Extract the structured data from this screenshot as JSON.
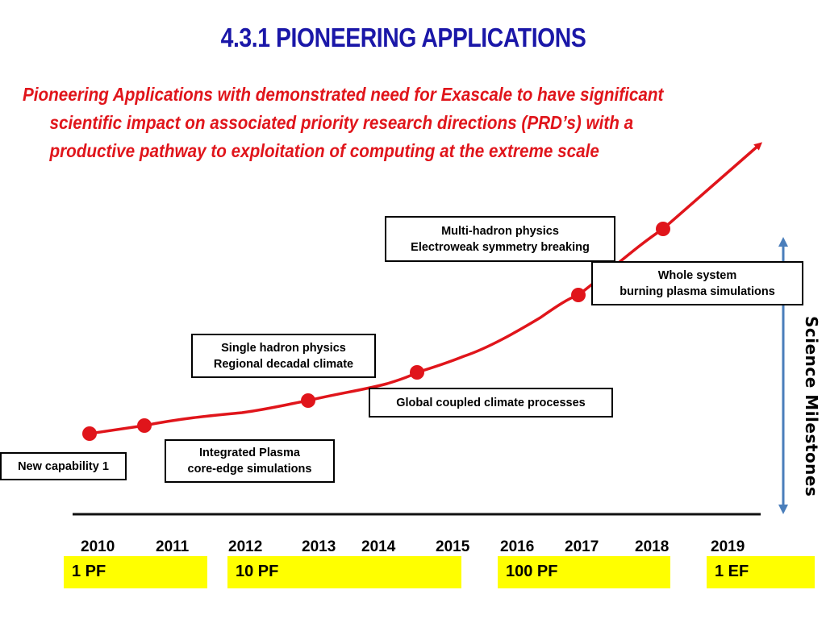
{
  "title": "4.3.1 PIONEERING APPLICATIONS",
  "subtitle": {
    "line1": "Pioneering Applications with demonstrated need for Exascale to have significant",
    "line2": "scientific impact on associated priority research directions (PRD’s) with a",
    "line3": "productive pathway to exploitation of computing at the extreme scale"
  },
  "boxes": {
    "new_capability": [
      "New capability 1"
    ],
    "integrated_plasma": [
      "Integrated Plasma",
      "core-edge simulations"
    ],
    "single_hadron": [
      "Single hadron physics",
      "Regional decadal climate"
    ],
    "global_climate": [
      "Global coupled climate processes"
    ],
    "multi_hadron": [
      "Multi-hadron physics",
      "Electroweak symmetry breaking"
    ],
    "whole_system": [
      "Whole system",
      "burning plasma simulations"
    ]
  },
  "axis_label": "Science Milestones",
  "years": [
    "2010",
    "2011",
    "2012",
    "2013",
    "2014",
    "2015",
    "2016",
    "2017",
    "2018",
    "2019"
  ],
  "performance": [
    "1 PF",
    "10 PF",
    "100 PF",
    "1 EF"
  ],
  "colors": {
    "title": "#1a17a8",
    "subtitle": "#e0151b",
    "curve": "#e0151b",
    "arrow": "#4a7ebb",
    "highlight": "#ffff00"
  }
}
